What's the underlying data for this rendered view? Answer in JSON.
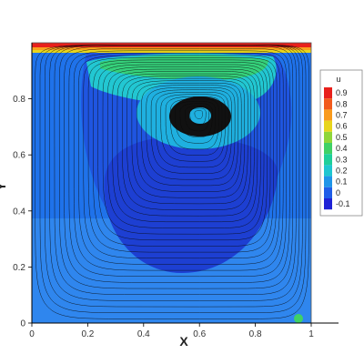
{
  "chart_data": {
    "type": "heatmap",
    "xlabel": "X",
    "ylabel": "Y",
    "xlim": [
      0,
      1
    ],
    "ylim": [
      0,
      1
    ],
    "x_ticks": [
      "0",
      "0.2",
      "0.4",
      "0.6",
      "0.8",
      "1"
    ],
    "y_ticks": [
      "0",
      "0.2",
      "0.4",
      "0.6",
      "0.8"
    ],
    "legend": {
      "title": "u",
      "placement": "right",
      "levels": [
        {
          "label": "0.9",
          "value": 0.9,
          "color": "#e8201b"
        },
        {
          "label": "0.8",
          "value": 0.8,
          "color": "#f25a1d"
        },
        {
          "label": "0.7",
          "value": 0.7,
          "color": "#f99a1c"
        },
        {
          "label": "0.6",
          "value": 0.6,
          "color": "#e8d51c"
        },
        {
          "label": "0.5",
          "value": 0.5,
          "color": "#8fd63a"
        },
        {
          "label": "0.4",
          "value": 0.4,
          "color": "#3fd166"
        },
        {
          "label": "0.3",
          "value": 0.3,
          "color": "#1fcf9a"
        },
        {
          "label": "0.2",
          "value": 0.2,
          "color": "#1fc6d0"
        },
        {
          "label": "0.1",
          "value": 0.1,
          "color": "#1f95e8"
        },
        {
          "label": "0",
          "value": 0.0,
          "color": "#1f5de8"
        },
        {
          "label": "-0.1",
          "value": -0.1,
          "color": "#1f22d6"
        }
      ]
    },
    "vortex_center": {
      "x": 0.6,
      "y": 0.75
    },
    "grid": false
  }
}
